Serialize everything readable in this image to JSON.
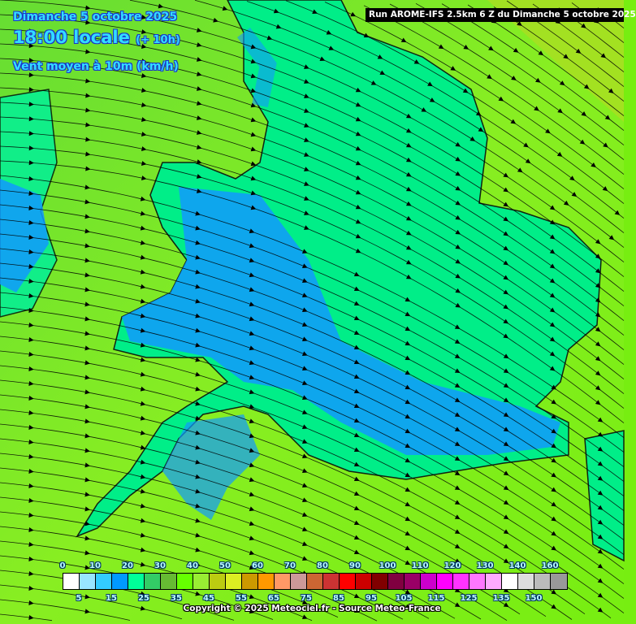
{
  "header": {
    "date": "Dimanche 5 octobre 2025",
    "time": "18:00 locale",
    "offset": "(+ 10h)",
    "variable": "Vent moyen à 10m (km/h)",
    "run": "Run AROME-IFS 2.5km 6 Z du Dimanche 5 octobre 2025"
  },
  "legend": {
    "colors": [
      "#ffffff",
      "#99e6ff",
      "#33ccff",
      "#0099ff",
      "#00ff99",
      "#33cc66",
      "#66bb33",
      "#66ff00",
      "#99ee33",
      "#bbcc11",
      "#ddee22",
      "#cc9900",
      "#ff9900",
      "#ff9966",
      "#cc9999",
      "#cc6633",
      "#cc3333",
      "#ff0000",
      "#cc0000",
      "#800000",
      "#800040",
      "#990066",
      "#cc00cc",
      "#ff00ff",
      "#ff33ff",
      "#ff77ff",
      "#ffaaff",
      "#ffffff",
      "#dddddd",
      "#bbbbbb",
      "#999999"
    ],
    "top_labels": [
      "0",
      "10",
      "20",
      "30",
      "40",
      "50",
      "60",
      "70",
      "80",
      "90",
      "100",
      "110",
      "120",
      "130",
      "140",
      "160"
    ],
    "bottom_labels": [
      "5",
      "15",
      "25",
      "35",
      "45",
      "55",
      "65",
      "75",
      "85",
      "95",
      "105",
      "115",
      "125",
      "135",
      "150"
    ]
  },
  "copyright": "Copyright © 2025 Meteociel.fr - Source Meteo-France"
}
